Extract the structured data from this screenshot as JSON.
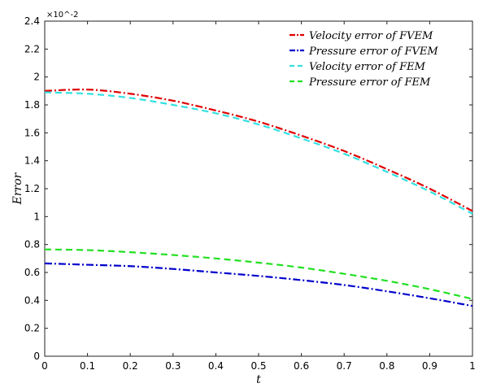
{
  "chart_data": {
    "type": "line",
    "title": "",
    "xlabel": "t",
    "ylabel": "Error",
    "y_exponent_label": "×10^-2",
    "xlim": [
      0,
      1
    ],
    "ylim": [
      0,
      2.4
    ],
    "x_ticks": [
      0,
      0.1,
      0.2,
      0.3,
      0.4,
      0.5,
      0.6,
      0.7,
      0.8,
      0.9,
      1
    ],
    "x_tick_labels": [
      "0",
      "0.1",
      "0.2",
      "0.3",
      "0.4",
      "0.5",
      "0.6",
      "0.7",
      "0.8",
      "0.9",
      "1"
    ],
    "y_ticks": [
      0,
      0.2,
      0.4,
      0.6,
      0.8,
      1,
      1.2,
      1.4,
      1.6,
      1.8,
      2,
      2.2,
      2.4
    ],
    "y_tick_labels": [
      "0",
      "0.2",
      "0.4",
      "0.6",
      "0.8",
      "1",
      "1.2",
      "1.4",
      "1.6",
      "1.8",
      "2",
      "2.2",
      "2.4"
    ],
    "legend_position": "top-right",
    "grid": false,
    "x": [
      0,
      0.1,
      0.2,
      0.3,
      0.4,
      0.5,
      0.6,
      0.7,
      0.8,
      0.9,
      1
    ],
    "series": [
      {
        "name": "Velocity error of FVEM",
        "color": "#e00000",
        "dash": "dash-dot",
        "values": [
          1.9,
          1.91,
          1.88,
          1.83,
          1.76,
          1.68,
          1.58,
          1.47,
          1.34,
          1.2,
          1.04
        ]
      },
      {
        "name": "Pressure error of FVEM",
        "color": "#0000cc",
        "dash": "dash-dot",
        "values": [
          0.665,
          0.655,
          0.645,
          0.625,
          0.6,
          0.575,
          0.545,
          0.51,
          0.465,
          0.415,
          0.36
        ]
      },
      {
        "name": "Velocity error of FEM",
        "color": "#33e0e0",
        "dash": "dashed",
        "values": [
          1.89,
          1.88,
          1.85,
          1.8,
          1.74,
          1.66,
          1.56,
          1.45,
          1.32,
          1.18,
          1.02
        ]
      },
      {
        "name": "Pressure error of FEM",
        "color": "#22e022",
        "dash": "dashed",
        "values": [
          0.765,
          0.76,
          0.745,
          0.725,
          0.7,
          0.67,
          0.635,
          0.59,
          0.54,
          0.48,
          0.41
        ]
      }
    ]
  }
}
